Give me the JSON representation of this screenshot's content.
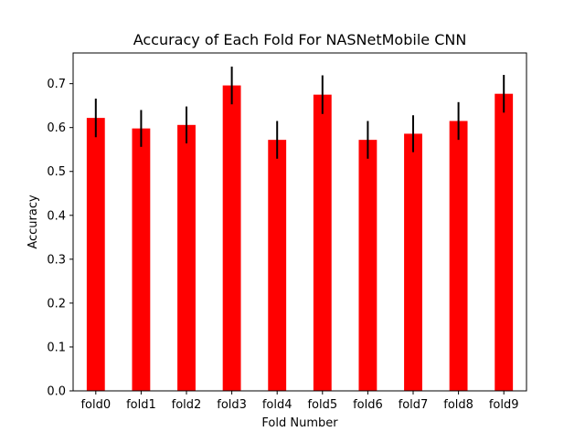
{
  "chart_data": {
    "type": "bar",
    "title": "Accuracy of Each Fold For NASNetMobile CNN",
    "xlabel": "Fold Number",
    "ylabel": "Accuracy",
    "categories": [
      "fold0",
      "fold1",
      "fold2",
      "fold3",
      "fold4",
      "fold5",
      "fold6",
      "fold7",
      "fold8",
      "fold9"
    ],
    "values": [
      0.622,
      0.598,
      0.606,
      0.696,
      0.572,
      0.675,
      0.572,
      0.586,
      0.615,
      0.677
    ],
    "errors": [
      0.044,
      0.042,
      0.042,
      0.043,
      0.043,
      0.044,
      0.043,
      0.042,
      0.043,
      0.043
    ],
    "ylim": [
      0,
      0.77
    ],
    "yticks": [
      0.0,
      0.1,
      0.2,
      0.3,
      0.4,
      0.5,
      0.6,
      0.7
    ],
    "ytick_labels": [
      "0.0",
      "0.1",
      "0.2",
      "0.3",
      "0.4",
      "0.5",
      "0.6",
      "0.7"
    ],
    "grid": false,
    "bar_color": "#ff0000",
    "error_bar_color": "#000000"
  }
}
